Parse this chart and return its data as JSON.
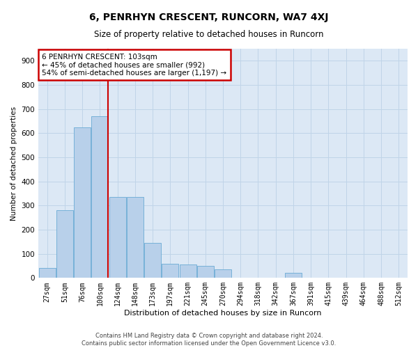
{
  "title": "6, PENRHYN CRESCENT, RUNCORN, WA7 4XJ",
  "subtitle": "Size of property relative to detached houses in Runcorn",
  "xlabel": "Distribution of detached houses by size in Runcorn",
  "ylabel": "Number of detached properties",
  "footer_line1": "Contains HM Land Registry data © Crown copyright and database right 2024.",
  "footer_line2": "Contains public sector information licensed under the Open Government Licence v3.0.",
  "bar_labels": [
    "27sqm",
    "51sqm",
    "76sqm",
    "100sqm",
    "124sqm",
    "148sqm",
    "173sqm",
    "197sqm",
    "221sqm",
    "245sqm",
    "270sqm",
    "294sqm",
    "318sqm",
    "342sqm",
    "367sqm",
    "391sqm",
    "415sqm",
    "439sqm",
    "464sqm",
    "488sqm",
    "512sqm"
  ],
  "bar_values": [
    40,
    280,
    625,
    670,
    335,
    335,
    145,
    60,
    55,
    50,
    35,
    0,
    0,
    0,
    20,
    0,
    0,
    0,
    0,
    0,
    0
  ],
  "bar_color": "#b8d0ea",
  "bar_edgecolor": "#6aaad4",
  "grid_color": "#c0d4e8",
  "bg_color": "#dce8f5",
  "annotation_text": "6 PENRHYN CRESCENT: 103sqm\n← 45% of detached houses are smaller (992)\n54% of semi-detached houses are larger (1,197) →",
  "annotation_box_color": "#cc0000",
  "ylim": [
    0,
    950
  ],
  "yticks": [
    0,
    100,
    200,
    300,
    400,
    500,
    600,
    700,
    800,
    900
  ],
  "title_fontsize": 10,
  "subtitle_fontsize": 8.5,
  "ylabel_fontsize": 7.5,
  "xlabel_fontsize": 8,
  "tick_fontsize": 7,
  "footer_fontsize": 6
}
